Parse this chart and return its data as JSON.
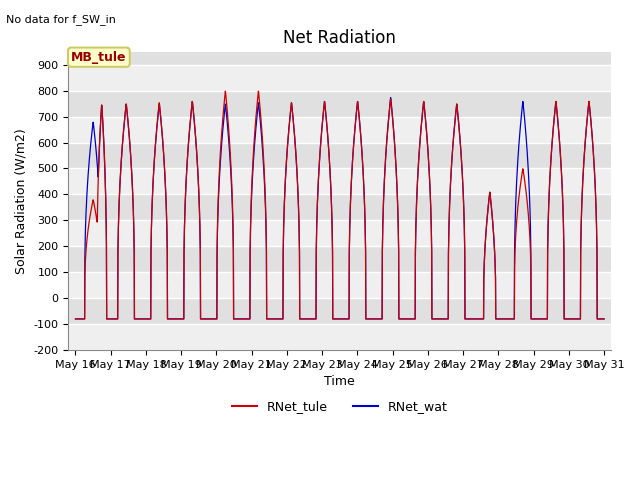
{
  "title": "Net Radiation",
  "subtitle": "No data for f_SW_in",
  "xlabel": "Time",
  "ylabel": "Solar Radiation (W/m2)",
  "ylim": [
    -200,
    950
  ],
  "yticks": [
    -200,
    -100,
    0,
    100,
    200,
    300,
    400,
    500,
    600,
    700,
    800,
    900
  ],
  "fig_bg_color": "#ffffff",
  "plot_bg_color": "#e0e0e0",
  "legend_box_label": "MB_tule",
  "legend_box_facecolor": "#ffffcc",
  "legend_box_edgecolor": "#cccc66",
  "color_tule": "#cc0000",
  "color_wat": "#0000cc",
  "n_days": 16,
  "start_day": 16,
  "end_day": 31,
  "points_per_day": 144,
  "title_fontsize": 12,
  "label_fontsize": 9,
  "tick_fontsize": 8
}
